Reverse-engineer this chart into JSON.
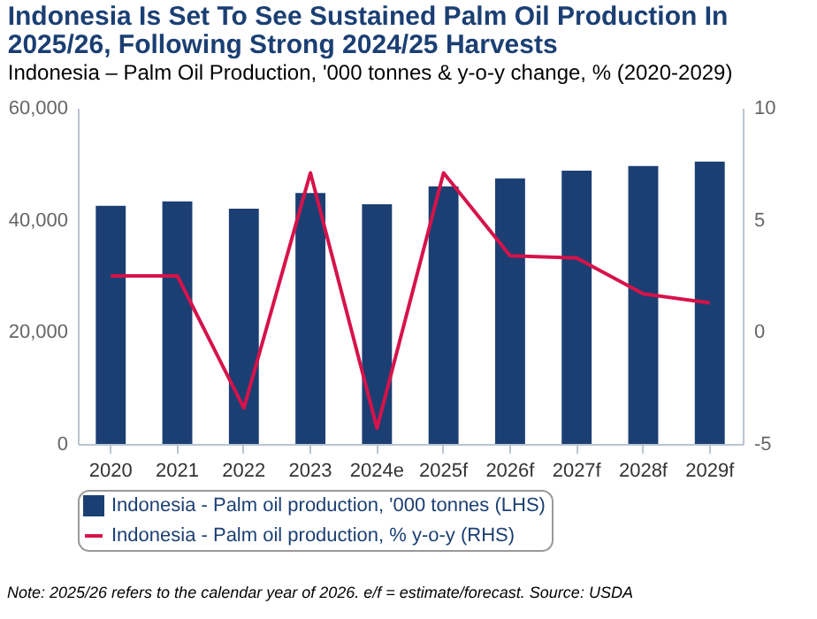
{
  "chart_data": {
    "type": "bar",
    "title": "Indonesia Is Set To See Sustained Palm Oil Production In 2025/26, Following Strong 2024/25 Harvests",
    "subtitle": "Indonesia – Palm Oil Production, '000 tonnes & y-o-y change, % (2020-2029)",
    "categories": [
      "2020",
      "2021",
      "2022",
      "2023",
      "2024e",
      "2025f",
      "2026f",
      "2027f",
      "2028f",
      "2029f"
    ],
    "series": [
      {
        "name": "Indonesia - Palm oil production, '000 tonnes (LHS)",
        "color": "#1b3f73",
        "values": [
          42500,
          43300,
          42000,
          44800,
          42800,
          46000,
          47400,
          48800,
          49600,
          50400
        ]
      },
      {
        "name": "Indonesia - Palm oil production, % y-o-y (RHS)",
        "type": "line",
        "axis": "y2",
        "color": "#d6134a",
        "values": [
          2.5,
          2.5,
          -3.4,
          7.1,
          -4.3,
          7.1,
          3.4,
          3.3,
          1.7,
          1.3
        ]
      }
    ],
    "ylim": [
      0,
      60000
    ],
    "yticks": [
      0,
      {
        "value": 20000,
        "label": "20,000"
      },
      {
        "value": 40000,
        "label": "40,000"
      },
      {
        "value": 60000,
        "label": "60,000"
      }
    ],
    "y2lim": [
      -5,
      10
    ],
    "y2ticks": [
      -5,
      0,
      5,
      10
    ],
    "grid": false,
    "legend": "bottom",
    "marker": "none",
    "line_style": "solid",
    "annotations": [
      "Note: 2025/26 refers to the calendar year of 2026. e/f = estimate/forecast. Source: USDA"
    ]
  }
}
